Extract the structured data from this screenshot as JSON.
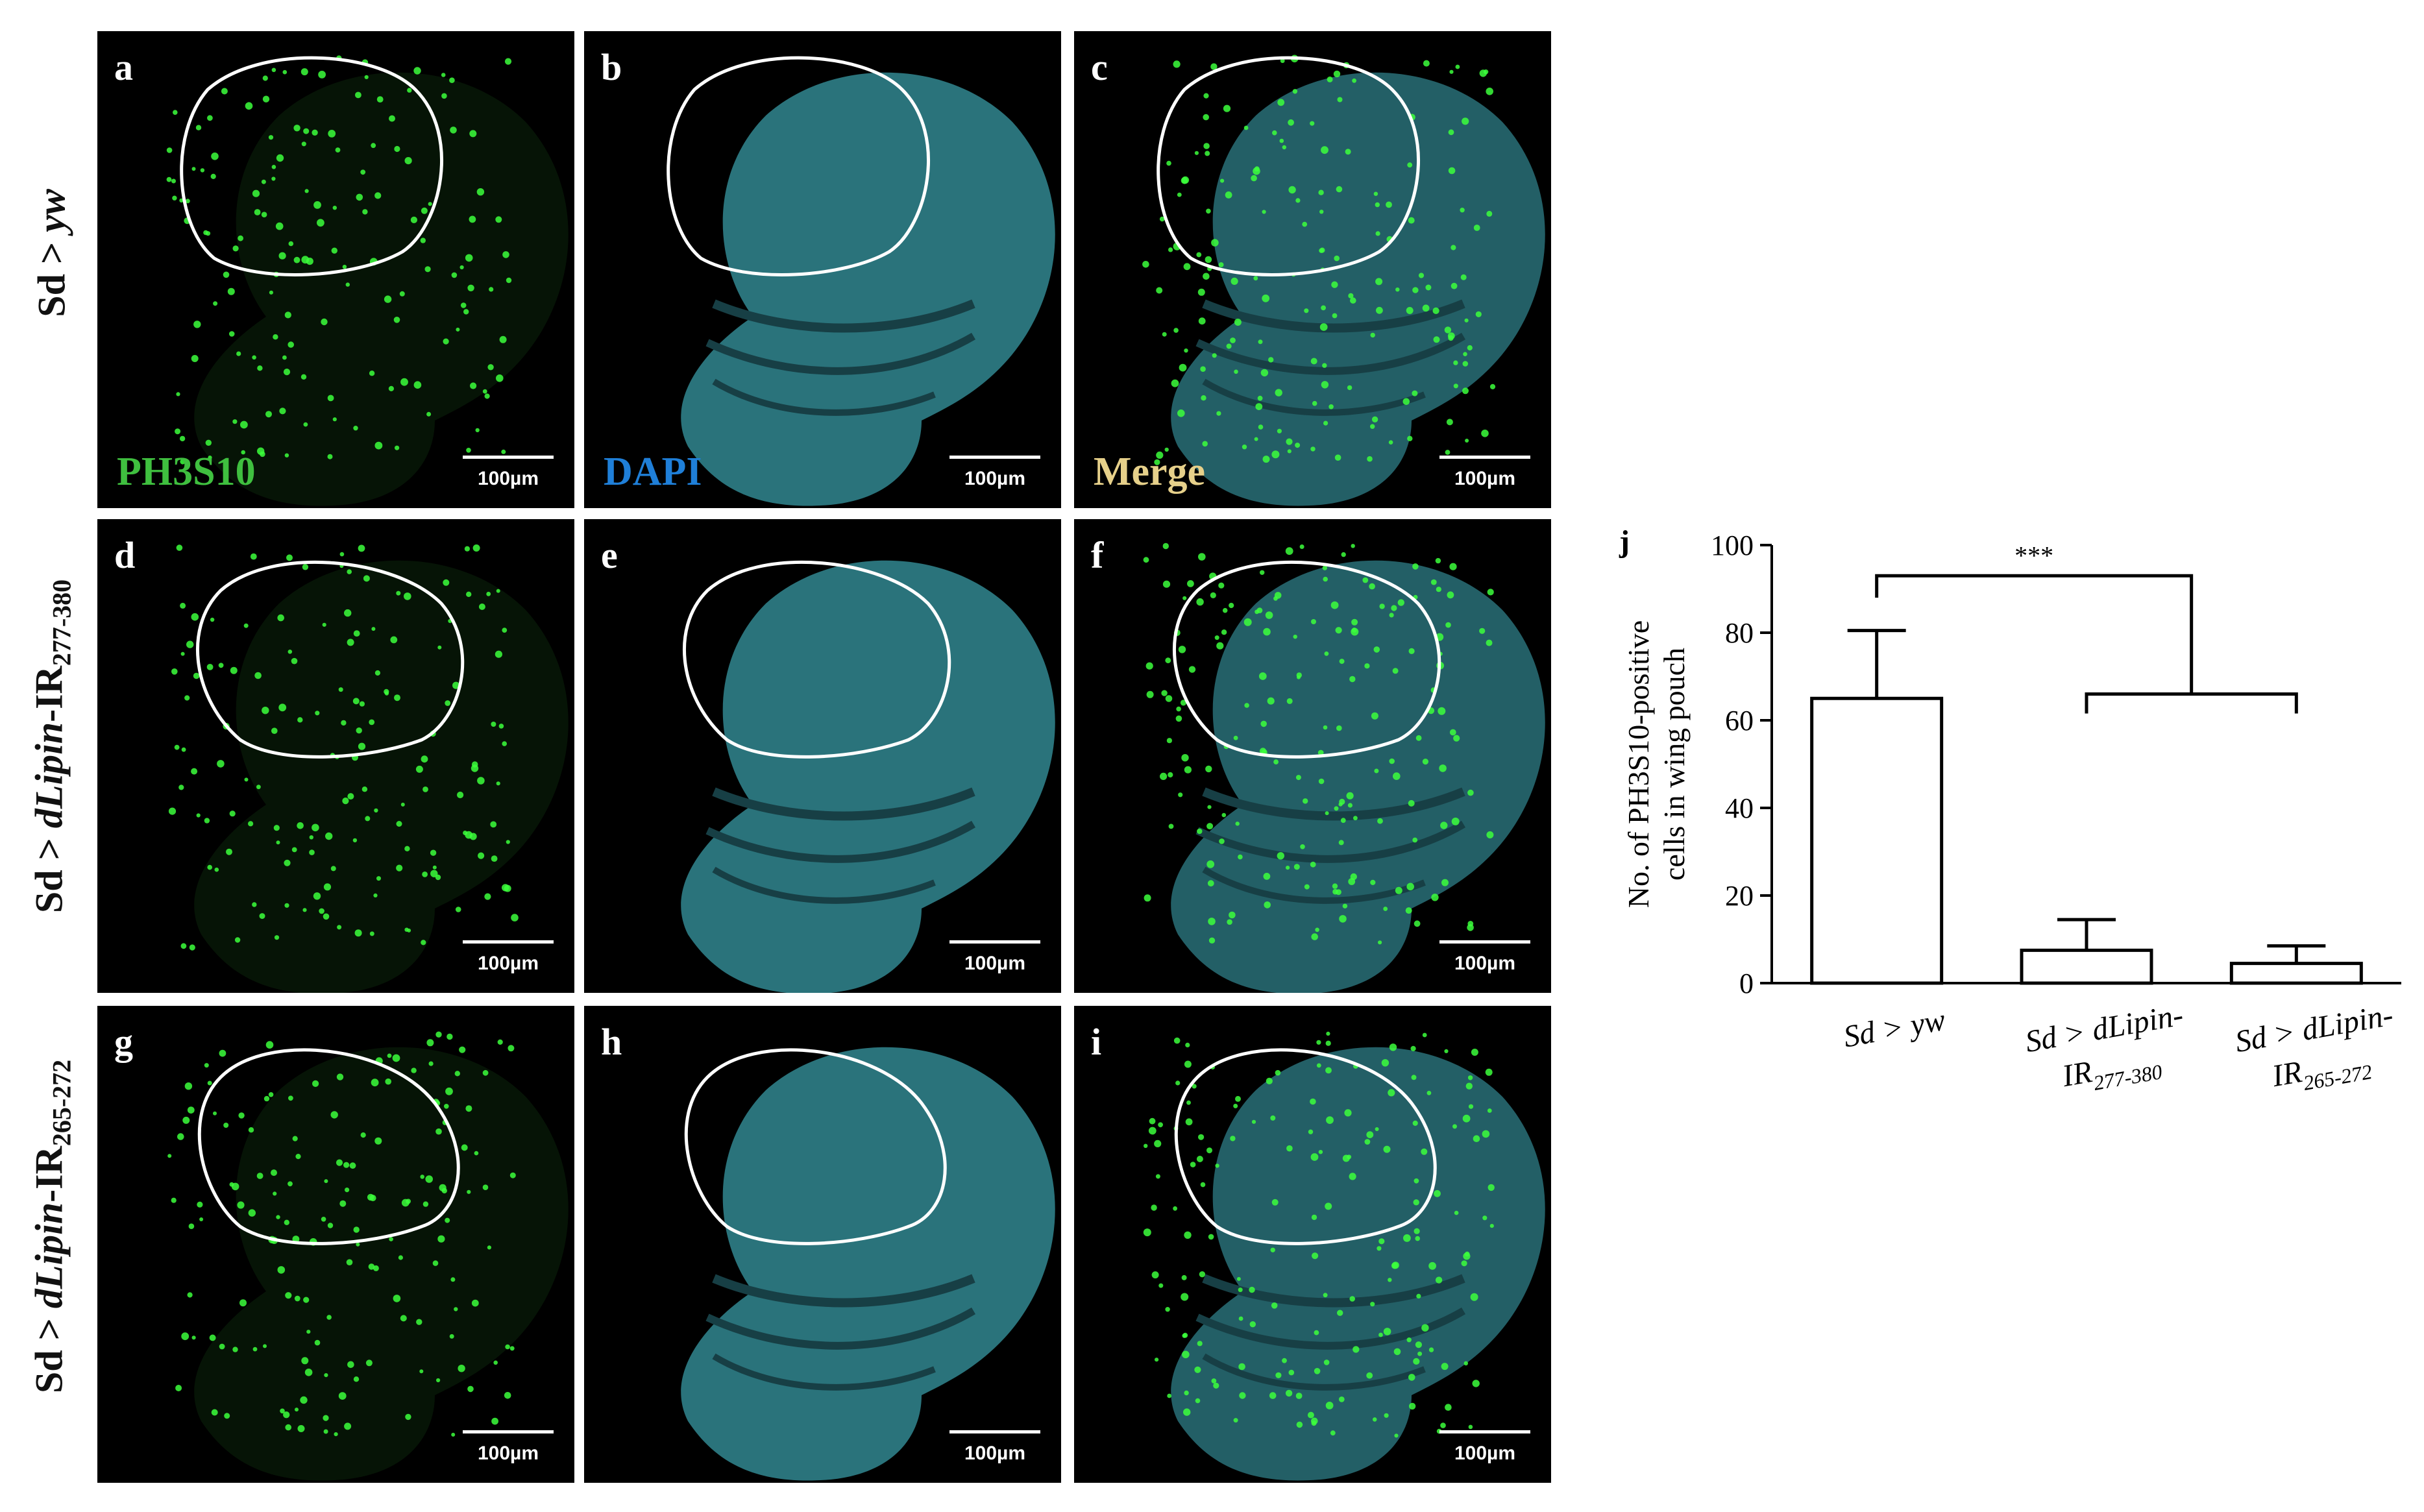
{
  "row_labels": [
    {
      "prefix": "Sd > ",
      "italic": "yw",
      "suffix": "",
      "sub": ""
    },
    {
      "prefix": "Sd > ",
      "italic": "dLipin",
      "suffix": "-IR",
      "sub": "277-380"
    },
    {
      "prefix": "Sd > ",
      "italic": "dLipin",
      "suffix": "-IR",
      "sub": "265-272"
    }
  ],
  "panels": [
    {
      "letter": "a",
      "channel": "PH3S10",
      "channel_color": "#3fbf3f",
      "scale": "100µm"
    },
    {
      "letter": "b",
      "channel": "DAPI",
      "channel_color": "#1f7fd8",
      "scale": "100µm"
    },
    {
      "letter": "c",
      "channel": "Merge",
      "channel_color": "#e6d08a",
      "scale": "100µm"
    },
    {
      "letter": "d",
      "channel": "",
      "scale": "100µm"
    },
    {
      "letter": "e",
      "channel": "",
      "scale": "100µm"
    },
    {
      "letter": "f",
      "channel": "",
      "scale": "100µm"
    },
    {
      "letter": "g",
      "channel": "",
      "scale": "100µm"
    },
    {
      "letter": "h",
      "channel": "",
      "scale": "100µm"
    },
    {
      "letter": "i",
      "channel": "",
      "scale": "100µm"
    }
  ],
  "colors": {
    "green": "#3cff3c",
    "cyan": "#2f7f88",
    "outline": "#ffffff"
  },
  "chart_data": {
    "type": "bar",
    "panel_letter": "j",
    "categories": [
      "Sd > yw",
      "Sd > dLipin-IR277-380",
      "Sd > dLipin-IR265-272"
    ],
    "category_labels": [
      {
        "lines": [
          "Sd > yw"
        ],
        "subs": [
          ""
        ]
      },
      {
        "lines": [
          "Sd > dLipin-",
          "IR"
        ],
        "subs": [
          "",
          "277-380"
        ]
      },
      {
        "lines": [
          "Sd > dLipin-",
          "IR"
        ],
        "subs": [
          "",
          "265-272"
        ]
      }
    ],
    "values": [
      65,
      7.5,
      4.5
    ],
    "errors": [
      15.5,
      7,
      4
    ],
    "ylabel": [
      "No. of PH3S10-positive",
      "cells in wing pouch"
    ],
    "ylim": [
      0,
      100
    ],
    "yticks": [
      0,
      20,
      40,
      60,
      80,
      100
    ],
    "significance": "***"
  }
}
